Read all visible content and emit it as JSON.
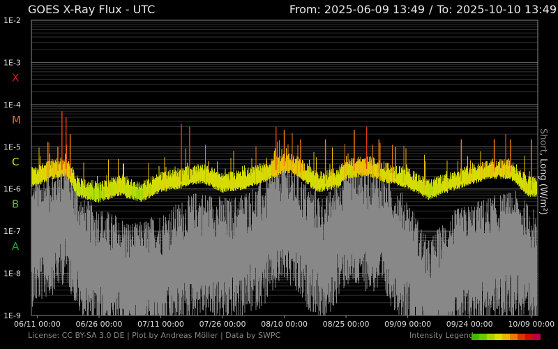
{
  "header": {
    "title": "GOES X-Ray Flux - UTC",
    "from_label": "From: 2025-06-09 13:49",
    "separator": "/",
    "to_label": "To: 2025-10-10 13:49"
  },
  "footer": {
    "license": "License: CC BY-SA 3.0 DE | Plot by Andreas Möller | Data by SWPC",
    "legend_label": "Intensity Legend"
  },
  "legend_colors": [
    "#44b800",
    "#66cc00",
    "#aad400",
    "#dddd00",
    "#eeb400",
    "#ee7a00",
    "#dd3300",
    "#cc1000",
    "#bb0044"
  ],
  "side_label": {
    "short": "Short",
    "sep": ", ",
    "long": "Long (W/m²)"
  },
  "chart_data": {
    "type": "line",
    "title": "GOES X-Ray Flux - UTC",
    "y_scale": "log",
    "ylim": [
      1e-09,
      0.01
    ],
    "y_ticks": [
      "1E-2",
      "1E-3",
      "1E-4",
      "1E-5",
      "1E-6",
      "1E-7",
      "1E-8",
      "1E-9"
    ],
    "flare_classes": [
      {
        "label": "X",
        "color": "#d01818"
      },
      {
        "label": "M",
        "color": "#ee6a10"
      },
      {
        "label": "C",
        "color": "#d8d820"
      },
      {
        "label": "B",
        "color": "#66bb22"
      },
      {
        "label": "A",
        "color": "#22aa22"
      }
    ],
    "x_ticks": [
      "06/11 00:00",
      "06/26 00:00",
      "07/11 00:00",
      "07/26 00:00",
      "08/10 00:00",
      "08/25 00:00",
      "09/09 00:00",
      "09/24 00:00",
      "10/09 00:00"
    ],
    "xlim": [
      "2025-06-09 13:49",
      "2025-10-10 13:49"
    ],
    "grid": true,
    "series": [
      {
        "name": "Long",
        "color": "#c8dc00",
        "baseline": [
          [
            "2025-06-10",
            1.6e-06
          ],
          [
            "2025-06-15",
            2.5e-06
          ],
          [
            "2025-06-18",
            3e-06
          ],
          [
            "2025-06-21",
            9e-07
          ],
          [
            "2025-06-26",
            7e-07
          ],
          [
            "2025-07-01",
            1e-06
          ],
          [
            "2025-07-06",
            7e-07
          ],
          [
            "2025-07-11",
            1.2e-06
          ],
          [
            "2025-07-16",
            1.5e-06
          ],
          [
            "2025-07-21",
            2e-06
          ],
          [
            "2025-07-26",
            1.2e-06
          ],
          [
            "2025-07-31",
            1.4e-06
          ],
          [
            "2025-08-05",
            2e-06
          ],
          [
            "2025-08-10",
            3.5e-06
          ],
          [
            "2025-08-13",
            3e-06
          ],
          [
            "2025-08-18",
            1.2e-06
          ],
          [
            "2025-08-23",
            1.5e-06
          ],
          [
            "2025-08-25",
            2.5e-06
          ],
          [
            "2025-08-30",
            3e-06
          ],
          [
            "2025-09-04",
            2e-06
          ],
          [
            "2025-09-09",
            1.5e-06
          ],
          [
            "2025-09-14",
            8e-07
          ],
          [
            "2025-09-19",
            1.2e-06
          ],
          [
            "2025-09-24",
            1.8e-06
          ],
          [
            "2025-09-29",
            2.5e-06
          ],
          [
            "2025-10-04",
            2.5e-06
          ],
          [
            "2025-10-08",
            1e-06
          ],
          [
            "2025-10-10",
            9e-07
          ]
        ],
        "flares": [
          [
            "2025-06-16",
            1e-05
          ],
          [
            "2025-06-17",
            7e-05
          ],
          [
            "2025-06-18",
            5e-05
          ],
          [
            "2025-06-19",
            2e-05
          ],
          [
            "2025-07-16",
            3.5e-05
          ],
          [
            "2025-07-18",
            3e-05
          ],
          [
            "2025-08-08",
            3e-05
          ],
          [
            "2025-08-10",
            2.5e-05
          ],
          [
            "2025-08-14",
            1.5e-05
          ],
          [
            "2025-08-20",
            1.5e-05
          ],
          [
            "2025-08-27",
            2.5e-05
          ],
          [
            "2025-08-30",
            3e-05
          ],
          [
            "2025-09-02",
            1.5e-05
          ],
          [
            "2025-09-06",
            1e-05
          ],
          [
            "2025-09-22",
            1.5e-05
          ],
          [
            "2025-09-30",
            1.5e-05
          ],
          [
            "2025-10-04",
            1.5e-05
          ],
          [
            "2025-10-09",
            1.5e-05
          ]
        ]
      },
      {
        "name": "Short",
        "color": "#888888",
        "baseline": [
          [
            "2025-06-10",
            5e-08
          ],
          [
            "2025-06-15",
            1e-07
          ],
          [
            "2025-06-18",
            2e-07
          ],
          [
            "2025-06-22",
            2e-08
          ],
          [
            "2025-06-28",
            1e-08
          ],
          [
            "2025-07-05",
            5e-09
          ],
          [
            "2025-07-12",
            1e-08
          ],
          [
            "2025-07-20",
            3e-08
          ],
          [
            "2025-07-28",
            2e-08
          ],
          [
            "2025-08-05",
            5e-08
          ],
          [
            "2025-08-10",
            2e-07
          ],
          [
            "2025-08-15",
            5e-08
          ],
          [
            "2025-08-20",
            2e-08
          ],
          [
            "2025-08-25",
            1.5e-07
          ],
          [
            "2025-09-02",
            1e-07
          ],
          [
            "2025-09-09",
            2e-08
          ],
          [
            "2025-09-14",
            2e-09
          ],
          [
            "2025-09-20",
            1e-08
          ],
          [
            "2025-09-28",
            2e-08
          ],
          [
            "2025-10-05",
            3e-08
          ],
          [
            "2025-10-10",
            1e-08
          ]
        ]
      }
    ]
  }
}
